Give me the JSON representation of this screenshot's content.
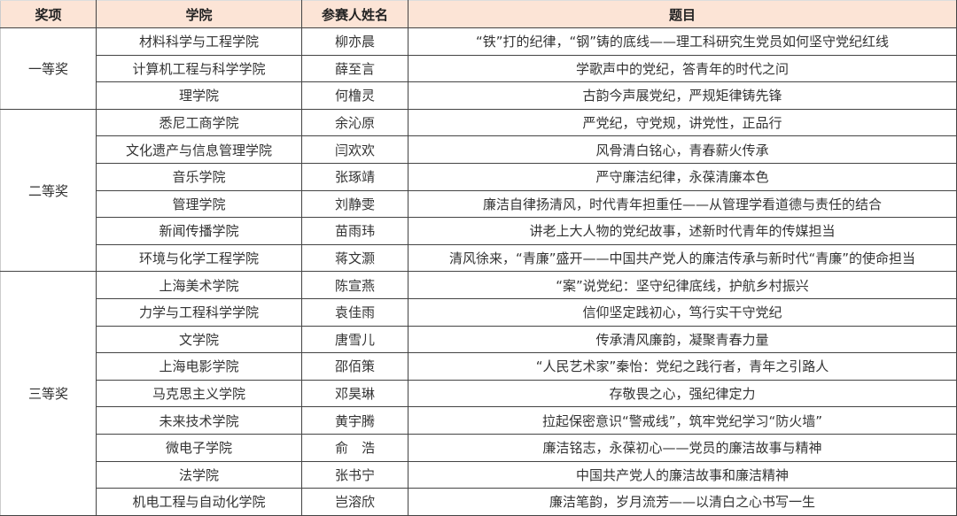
{
  "header": {
    "award": "奖项",
    "college": "学院",
    "name": "参赛人姓名",
    "title": "题目"
  },
  "colors": {
    "header_bg": "#fce4d6",
    "border": "#444444"
  },
  "groups": [
    {
      "award": "一等奖",
      "rows": [
        {
          "college": "材料科学与工程学院",
          "name": "柳亦晨",
          "title": "“铁”打的纪律，“钢”铸的底线——理工科研究生党员如何坚守党纪红线"
        },
        {
          "college": "计算机工程与科学学院",
          "name": "薛至言",
          "title": "学歌声中的党纪，答青年的时代之问"
        },
        {
          "college": "理学院",
          "name": "何橹灵",
          "title": "古韵今声展党纪，严规矩律铸先锋"
        }
      ]
    },
    {
      "award": "二等奖",
      "rows": [
        {
          "college": "悉尼工商学院",
          "name": "余沁原",
          "title": "严党纪，守党规，讲党性，正品行"
        },
        {
          "college": "文化遗产与信息管理学院",
          "name": "闫欢欢",
          "title": "风骨清白铭心，青春薪火传承"
        },
        {
          "college": "音乐学院",
          "name": "张琢靖",
          "title": "严守廉洁纪律，永葆清廉本色"
        },
        {
          "college": "管理学院",
          "name": "刘静雯",
          "title": "廉洁自律扬清风，时代青年担重任——从管理学看道德与责任的结合"
        },
        {
          "college": "新闻传播学院",
          "name": "苗雨玮",
          "title": "讲老上大人物的党纪故事，述新时代青年的传媒担当"
        },
        {
          "college": "环境与化学工程学院",
          "name": "蒋文灏",
          "title": "清风徐来，“青廉”盛开——中国共产党人的廉洁传承与新时代“青廉”的使命担当"
        }
      ]
    },
    {
      "award": "三等奖",
      "rows": [
        {
          "college": "上海美术学院",
          "name": "陈宣燕",
          "title": "“案”说党纪：坚守纪律底线，护航乡村振兴"
        },
        {
          "college": "力学与工程科学学院",
          "name": "袁佳雨",
          "title": "信仰坚定践初心，笃行实干守党纪"
        },
        {
          "college": "文学院",
          "name": "唐雪儿",
          "title": "传承清风廉韵，凝聚青春力量"
        },
        {
          "college": "上海电影学院",
          "name": "邵佰策",
          "title": "“人民艺术家”秦怡：党纪之践行者，青年之引路人"
        },
        {
          "college": "马克思主义学院",
          "name": "邓昊琳",
          "title": "存敬畏之心，强纪律定力"
        },
        {
          "college": "未来技术学院",
          "name": "黄宇腾",
          "title": "拉起保密意识“警戒线”，筑牢党纪学习“防火墙”"
        },
        {
          "college": "微电子学院",
          "name": "俞　浩",
          "title": "廉洁铭志，永葆初心——党员的廉洁故事与精神"
        },
        {
          "college": "法学院",
          "name": "张书宁",
          "title": "中国共产党人的廉洁故事和廉洁精神"
        },
        {
          "college": "机电工程与自动化学院",
          "name": "岂溶欣",
          "title": "廉洁笔韵，岁月流芳——以清白之心书写一生"
        }
      ]
    }
  ]
}
